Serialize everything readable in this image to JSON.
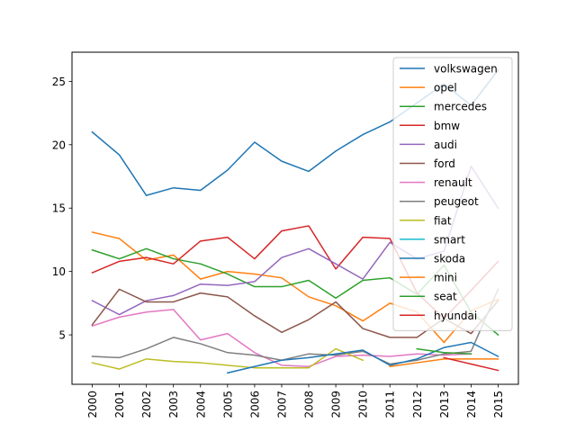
{
  "chart_data": {
    "type": "line",
    "x": [
      "2000",
      "2001",
      "2002",
      "2003",
      "2004",
      "2005",
      "2006",
      "2007",
      "2008",
      "2009",
      "2010",
      "2011",
      "2012",
      "2013",
      "2014",
      "2015"
    ],
    "yticks": [
      "5",
      "10",
      "15",
      "20",
      "25"
    ],
    "ylim": [
      1.1,
      27.3
    ],
    "grid": false,
    "legend_position": "top-right",
    "series": [
      {
        "name": "volkswagen",
        "color": "#1f77b4",
        "values": [
          21.0,
          19.2,
          16.0,
          16.6,
          16.4,
          18.0,
          20.2,
          18.7,
          17.9,
          19.5,
          20.8,
          21.8,
          23.3,
          24.8,
          23.1,
          25.9
        ]
      },
      {
        "name": "opel",
        "color": "#ff7f0e",
        "values": [
          13.1,
          12.6,
          10.9,
          11.3,
          9.4,
          10.0,
          9.8,
          9.5,
          8.0,
          7.3,
          6.1,
          7.5,
          6.8,
          4.4,
          6.9,
          7.8
        ]
      },
      {
        "name": "mercedes",
        "color": "#2ca02c",
        "values": [
          11.7,
          11.0,
          11.8,
          11.0,
          10.6,
          9.8,
          8.8,
          8.8,
          9.3,
          7.9,
          9.3,
          9.5,
          8.2,
          10.5,
          6.8,
          5.0
        ]
      },
      {
        "name": "bmw",
        "color": "#d62728",
        "values": [
          9.9,
          10.8,
          11.1,
          10.6,
          12.4,
          12.7,
          11.0,
          13.2,
          13.6,
          10.2,
          12.7,
          12.6,
          8.3,
          6.3,
          8.5,
          10.8
        ]
      },
      {
        "name": "audi",
        "color": "#9467bd",
        "values": [
          7.7,
          6.6,
          7.7,
          8.1,
          9.0,
          8.9,
          9.2,
          11.1,
          11.8,
          10.6,
          9.4,
          12.3,
          11.0,
          11.6,
          18.3,
          15.0
        ]
      },
      {
        "name": "ford",
        "color": "#8c564b",
        "values": [
          5.8,
          8.6,
          7.6,
          7.6,
          8.3,
          8.0,
          6.5,
          5.2,
          6.2,
          7.6,
          5.5,
          4.8,
          4.8,
          6.3,
          5.1,
          7.7
        ]
      },
      {
        "name": "renault",
        "color": "#e377c2",
        "values": [
          5.7,
          6.4,
          6.8,
          7.0,
          4.6,
          5.1,
          3.6,
          2.6,
          2.5,
          3.3,
          3.4,
          3.3,
          3.5,
          3.4,
          3.5,
          null
        ]
      },
      {
        "name": "peugeot",
        "color": "#7f7f7f",
        "values": [
          3.3,
          3.2,
          3.9,
          4.8,
          4.3,
          3.6,
          3.4,
          3.0,
          3.5,
          3.4,
          3.7,
          2.7,
          3.0,
          3.5,
          3.7,
          8.6
        ]
      },
      {
        "name": "fiat",
        "color": "#bcbd22",
        "values": [
          2.8,
          2.3,
          3.1,
          2.9,
          2.8,
          2.6,
          2.4,
          2.4,
          2.4,
          3.9,
          3.0,
          null,
          null,
          null,
          null,
          null
        ]
      },
      {
        "name": "smart",
        "color": "#17becf",
        "values": [
          null,
          null,
          null,
          null,
          null,
          null,
          null,
          null,
          null,
          null,
          null,
          null,
          null,
          null,
          null,
          null
        ]
      },
      {
        "name": "skoda",
        "color": "#1f77b4",
        "values": [
          null,
          null,
          null,
          null,
          null,
          2.0,
          2.5,
          3.0,
          3.2,
          3.5,
          3.8,
          2.6,
          3.1,
          4.0,
          4.4,
          3.3
        ]
      },
      {
        "name": "mini",
        "color": "#ff7f0e",
        "values": [
          null,
          null,
          null,
          null,
          null,
          null,
          null,
          null,
          null,
          null,
          null,
          2.5,
          2.8,
          3.1,
          3.1,
          3.1
        ]
      },
      {
        "name": "seat",
        "color": "#2ca02c",
        "values": [
          null,
          null,
          null,
          null,
          null,
          null,
          null,
          null,
          null,
          null,
          null,
          null,
          3.9,
          3.6,
          3.5,
          null
        ]
      },
      {
        "name": "hyundai",
        "color": "#d62728",
        "values": [
          null,
          null,
          null,
          null,
          null,
          null,
          null,
          null,
          null,
          null,
          null,
          null,
          null,
          3.2,
          2.7,
          2.2
        ]
      }
    ]
  }
}
